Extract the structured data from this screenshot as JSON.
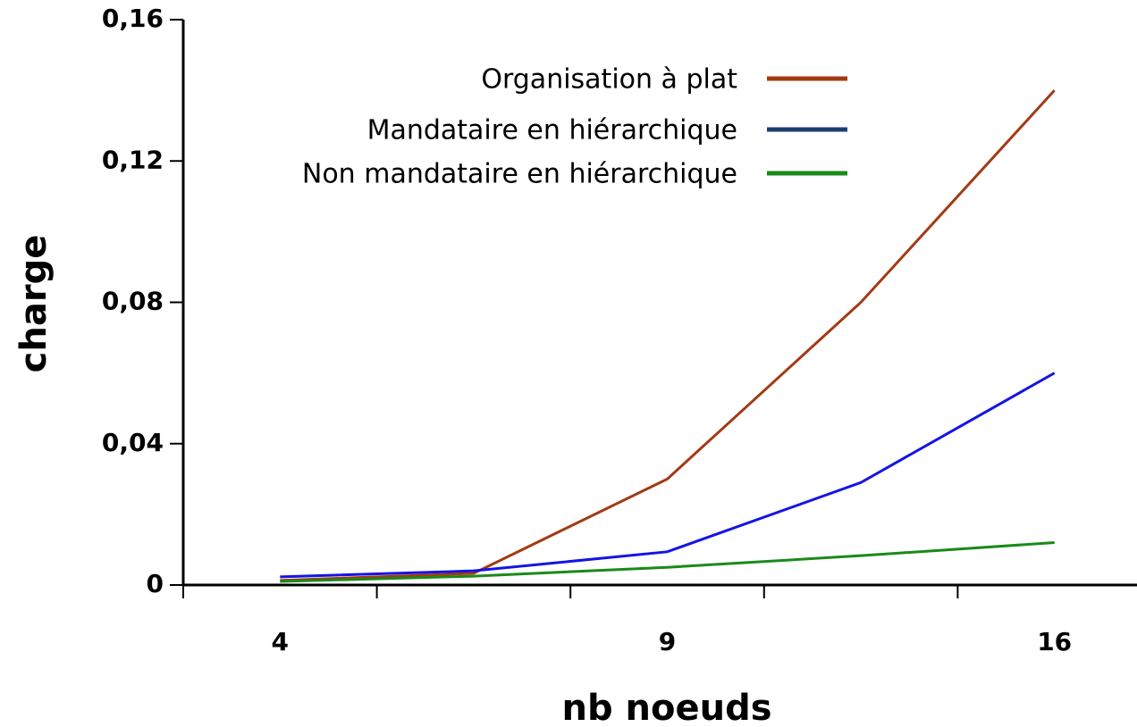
{
  "chart_data": {
    "type": "line",
    "x_label": "nb noeuds",
    "y_label": "charge",
    "categories": [
      "4",
      null,
      "9",
      null,
      "16"
    ],
    "series": [
      {
        "name": "Organisation à plat",
        "color": "#a33a12",
        "values": [
          0.0013,
          0.0033,
          0.03,
          0.08,
          0.14
        ]
      },
      {
        "name": "Mandataire en hiérarchique",
        "color": "#1414e6",
        "legend_color": "#1c3f6e",
        "values": [
          0.0023,
          0.004,
          0.0094,
          0.029,
          0.06
        ]
      },
      {
        "name": "Non mandataire en hiérarchique",
        "color": "#1a8a1a",
        "values": [
          0.001,
          0.0025,
          0.005,
          0.0083,
          0.012
        ]
      }
    ],
    "ylim": [
      0,
      0.16
    ],
    "yticks": [
      0,
      {
        "value": 0.04,
        "label": "0,04"
      },
      {
        "value": 0.08,
        "label": "0,08"
      },
      {
        "value": 0.12,
        "label": "0,12"
      },
      {
        "value": 0.16,
        "label": "0,16"
      }
    ],
    "legend": "upper left",
    "grid": false
  }
}
